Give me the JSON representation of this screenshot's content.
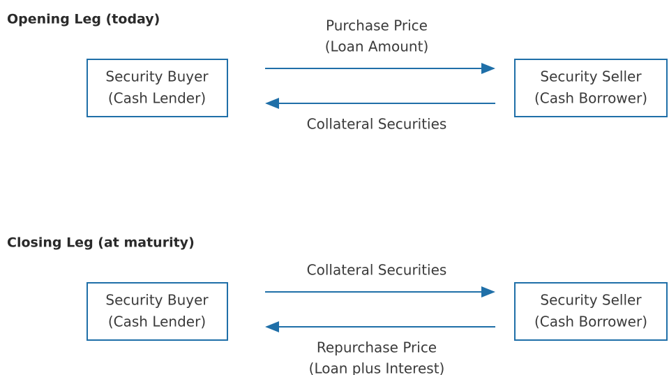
{
  "sections": [
    {
      "title": "Opening Leg (today)",
      "left": {
        "line1": "Security Buyer",
        "line2": "(Cash Lender)"
      },
      "right": {
        "line1": "Security Seller",
        "line2": "(Cash Borrower)"
      },
      "top_label": [
        "Purchase Price",
        "(Loan Amount)"
      ],
      "bottom_label": [
        "Collateral Securities"
      ]
    },
    {
      "title": "Closing Leg (at maturity)",
      "left": {
        "line1": "Security Buyer",
        "line2": "(Cash Lender)"
      },
      "right": {
        "line1": "Security Seller",
        "line2": "(Cash Borrower)"
      },
      "top_label": [
        "Collateral Securities"
      ],
      "bottom_label": [
        "Repurchase Price",
        "(Loan plus Interest)"
      ]
    }
  ]
}
